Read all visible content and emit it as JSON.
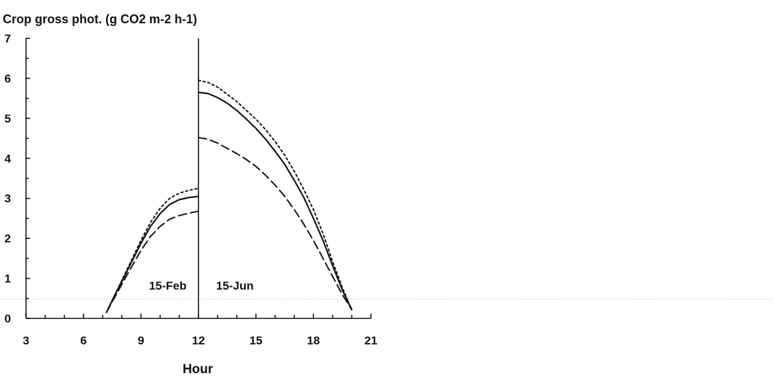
{
  "chart_data": {
    "type": "line",
    "title": "Crop gross phot. (g CO2 m-2 h-1)",
    "xlabel": "Hour",
    "ylabel": "",
    "xlim": [
      3,
      21
    ],
    "ylim": [
      0,
      7
    ],
    "x_ticks": [
      3,
      6,
      9,
      12,
      15,
      18,
      21
    ],
    "y_ticks": [
      0,
      1,
      2,
      3,
      4,
      5,
      6,
      7
    ],
    "divider_x": 12,
    "annotations": [
      {
        "text": "15-Feb",
        "x": 10.4,
        "y": 0.72
      },
      {
        "text": "15-Jun",
        "x": 13.9,
        "y": 0.72
      }
    ],
    "series": [
      {
        "style": "dotted",
        "segments": [
          {
            "x": [
              7.2,
              7.6,
              8.0,
              8.5,
              9.0,
              9.5,
              10.0,
              10.5,
              11.0,
              11.5,
              12.0
            ],
            "y": [
              0.15,
              0.55,
              0.95,
              1.45,
              1.95,
              2.4,
              2.75,
              3.0,
              3.13,
              3.2,
              3.25
            ]
          },
          {
            "x": [
              12.0,
              12.5,
              13.0,
              13.5,
              14.0,
              14.5,
              15.0,
              15.5,
              16.0,
              16.5,
              17.0,
              17.5,
              18.0,
              18.5,
              19.0,
              19.5,
              20.0
            ],
            "y": [
              5.95,
              5.9,
              5.78,
              5.6,
              5.42,
              5.2,
              4.98,
              4.72,
              4.42,
              4.08,
              3.68,
              3.22,
              2.72,
              2.12,
              1.42,
              0.78,
              0.2
            ]
          }
        ]
      },
      {
        "style": "solid",
        "segments": [
          {
            "x": [
              7.2,
              7.6,
              8.0,
              8.5,
              9.0,
              9.5,
              10.0,
              10.5,
              11.0,
              11.5,
              12.0
            ],
            "y": [
              0.15,
              0.55,
              0.92,
              1.4,
              1.88,
              2.3,
              2.62,
              2.85,
              2.97,
              3.02,
              3.05
            ]
          },
          {
            "x": [
              12.0,
              12.5,
              13.0,
              13.5,
              14.0,
              14.5,
              15.0,
              15.5,
              16.0,
              16.5,
              17.0,
              17.5,
              18.0,
              18.5,
              19.0,
              19.5,
              20.0
            ],
            "y": [
              5.65,
              5.62,
              5.52,
              5.38,
              5.2,
              4.98,
              4.75,
              4.48,
              4.18,
              3.85,
              3.45,
              3.02,
              2.5,
              1.95,
              1.32,
              0.72,
              0.22
            ]
          }
        ]
      },
      {
        "style": "dashed",
        "segments": [
          {
            "x": [
              7.2,
              7.6,
              8.0,
              8.5,
              9.0,
              9.5,
              10.0,
              10.5,
              11.0,
              11.5,
              12.0
            ],
            "y": [
              0.15,
              0.5,
              0.85,
              1.28,
              1.7,
              2.05,
              2.3,
              2.48,
              2.57,
              2.63,
              2.68
            ]
          },
          {
            "x": [
              12.0,
              12.5,
              13.0,
              13.5,
              14.0,
              14.5,
              15.0,
              15.5,
              16.0,
              16.5,
              17.0,
              17.5,
              18.0,
              18.5,
              19.0,
              19.5,
              20.0
            ],
            "y": [
              4.52,
              4.48,
              4.38,
              4.25,
              4.12,
              3.97,
              3.8,
              3.58,
              3.33,
              3.05,
              2.72,
              2.35,
              1.95,
              1.5,
              1.05,
              0.6,
              0.22
            ]
          }
        ]
      }
    ]
  }
}
